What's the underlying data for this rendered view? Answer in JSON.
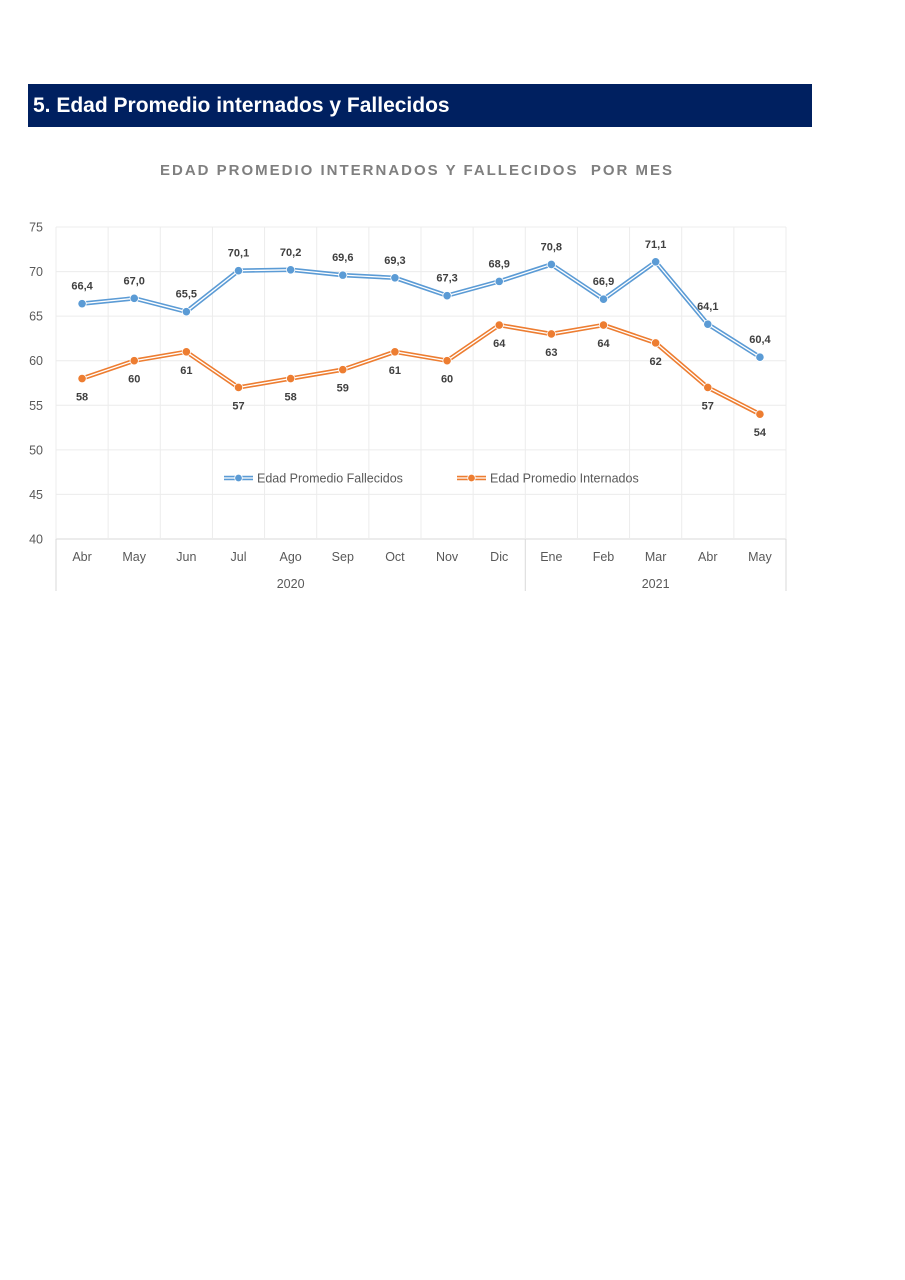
{
  "header": {
    "title": "5. Edad Promedio internados y Fallecidos"
  },
  "chart_data": {
    "type": "line",
    "title": "EDAD PROMEDIO INTERNADOS Y FALLECIDOS  POR MES",
    "categories": [
      "Abr",
      "May",
      "Jun",
      "Jul",
      "Ago",
      "Sep",
      "Oct",
      "Nov",
      "Dic",
      "Ene",
      "Feb",
      "Mar",
      "Abr",
      "May"
    ],
    "groups": [
      {
        "label": "2020",
        "start": 0,
        "end": 8
      },
      {
        "label": "2021",
        "start": 9,
        "end": 13
      }
    ],
    "ylim": [
      40,
      75
    ],
    "yticks": [
      40,
      45,
      50,
      55,
      60,
      65,
      70,
      75
    ],
    "grid": true,
    "legend_position": "inside-center",
    "series": [
      {
        "name": "Edad Promedio Fallecidos",
        "color": "#5B9BD5",
        "label_position": "above",
        "values": [
          66.4,
          67.0,
          65.5,
          70.1,
          70.2,
          69.6,
          69.3,
          67.3,
          68.9,
          70.8,
          66.9,
          71.1,
          64.1,
          60.4
        ],
        "labels": [
          "66,4",
          "67,0",
          "65,5",
          "70,1",
          "70,2",
          "69,6",
          "69,3",
          "67,3",
          "68,9",
          "70,8",
          "66,9",
          "71,1",
          "64,1",
          "60,4"
        ]
      },
      {
        "name": "Edad Promedio Internados",
        "color": "#ED7D31",
        "label_position": "below",
        "values": [
          58,
          60,
          61,
          57,
          58,
          59,
          61,
          60,
          64,
          63,
          64,
          62,
          57,
          54
        ],
        "labels": [
          "58",
          "60",
          "61",
          "57",
          "58",
          "59",
          "61",
          "60",
          "64",
          "63",
          "64",
          "62",
          "57",
          "54"
        ]
      }
    ]
  }
}
